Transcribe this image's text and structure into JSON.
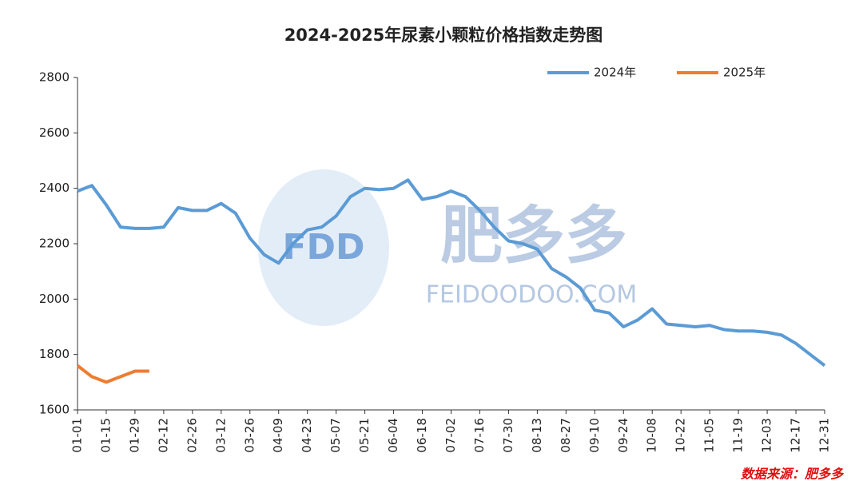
{
  "chart_data": {
    "type": "line",
    "title": "2024-2025年尿素小颗粒价格指数走势图",
    "source": "数据来源：肥多多",
    "watermark": {
      "logo": "FDD",
      "name": "肥多多",
      "site": "FEIDOODOO.COM"
    },
    "categories": [
      "01-01",
      null,
      "01-15",
      null,
      "01-29",
      null,
      "02-12",
      null,
      "02-26",
      null,
      "03-12",
      null,
      "03-26",
      null,
      "04-09",
      null,
      "04-23",
      null,
      "05-07",
      null,
      "05-21",
      null,
      "06-04",
      null,
      "06-18",
      null,
      "07-02",
      null,
      "07-16",
      null,
      "07-30",
      null,
      "08-13",
      null,
      "08-27",
      null,
      "09-10",
      null,
      "09-24",
      null,
      "10-08",
      null,
      "10-22",
      null,
      "11-05",
      null,
      "11-19",
      null,
      "12-03",
      null,
      "12-17",
      null,
      "12-31"
    ],
    "series": [
      {
        "name": "2024年",
        "color": "#5b9bd5",
        "values": [
          2390,
          2410,
          2340,
          2260,
          2255,
          2255,
          2260,
          2330,
          2320,
          2320,
          2345,
          2310,
          2220,
          2160,
          2130,
          2200,
          2250,
          2260,
          2300,
          2370,
          2400,
          2395,
          2400,
          2430,
          2360,
          2370,
          2390,
          2370,
          2320,
          2260,
          2210,
          2200,
          2180,
          2110,
          2080,
          2040,
          1960,
          1950,
          1900,
          1925,
          1965,
          1910,
          1905,
          1900,
          1905,
          1890,
          1885,
          1885,
          1880,
          1870,
          1840,
          1800,
          1760
        ]
      },
      {
        "name": "2025年",
        "color": "#ed7d31",
        "values": [
          1760,
          1720,
          1700,
          1720,
          1740,
          1740,
          null,
          null,
          null,
          null,
          null,
          null,
          null,
          null,
          null,
          null,
          null,
          null,
          null,
          null,
          null,
          null,
          null,
          null,
          null,
          null,
          null,
          null,
          null,
          null,
          null,
          null,
          null,
          null,
          null,
          null,
          null,
          null,
          null,
          null,
          null,
          null,
          null,
          null,
          null,
          null,
          null,
          null,
          null,
          null,
          null,
          null,
          null
        ]
      }
    ],
    "ylim": [
      1600,
      2800
    ],
    "yticks": [
      1600,
      1800,
      2000,
      2200,
      2400,
      2600,
      2800
    ],
    "legend": "top-right"
  }
}
